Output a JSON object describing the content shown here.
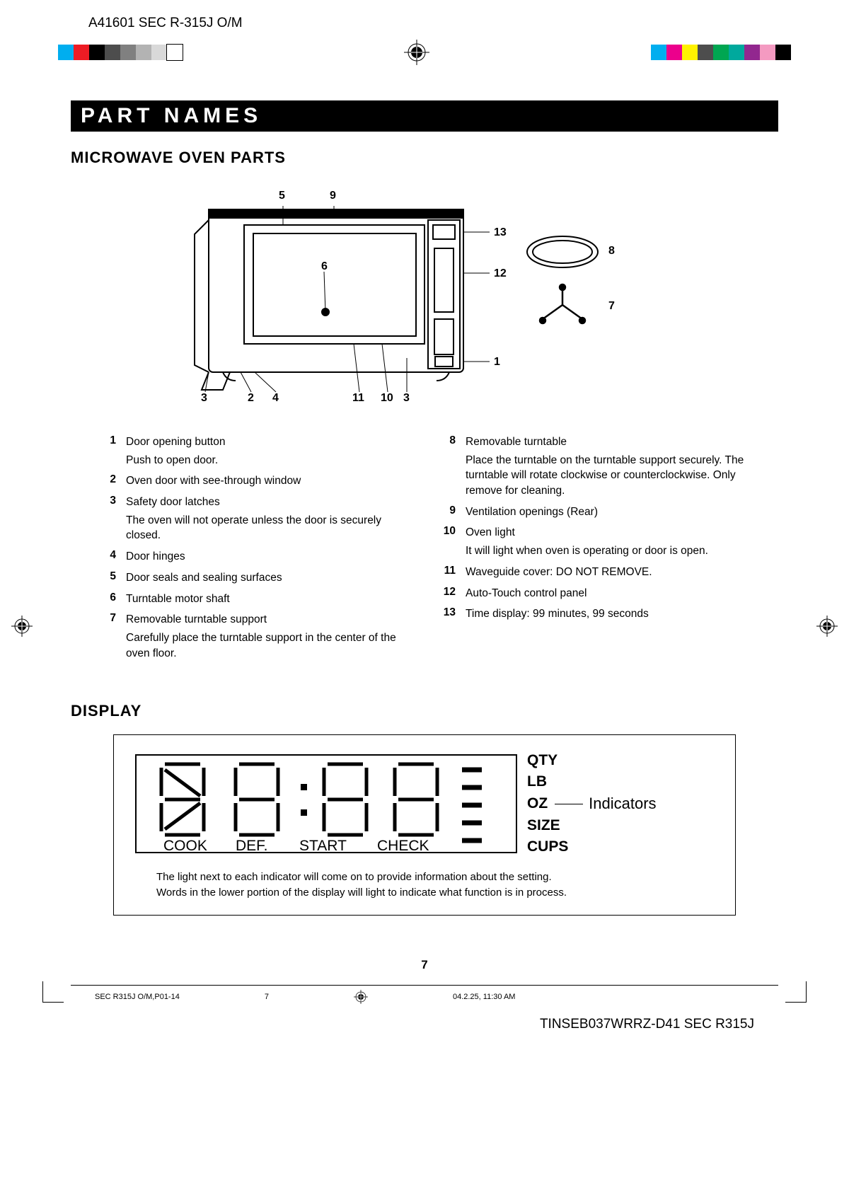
{
  "header": {
    "doc_code": "A41601 SEC R-315J O/M"
  },
  "regbar": {
    "left_swatches": [
      "#00aeef",
      "#ed1c24",
      "#000000",
      "#4d4d4d",
      "#808080",
      "#b3b3b3",
      "#d9d9d9",
      "#ffffff"
    ],
    "right_swatches": [
      "#00aeef",
      "#ec008c",
      "#fff200",
      "#4d4d4d",
      "#00a651",
      "#00a99d",
      "#92278f",
      "#f49ac1",
      "#000000"
    ]
  },
  "band_title": "PART NAMES",
  "section1_title": "MICROWAVE OVEN PARTS",
  "callouts": {
    "top": [
      "5",
      "9"
    ],
    "right": [
      "13",
      "12",
      "1"
    ],
    "far_right": [
      "8",
      "7"
    ],
    "center": [
      "6"
    ],
    "bottom": [
      "3",
      "2",
      "4",
      "11",
      "10",
      "3"
    ]
  },
  "parts_left": [
    {
      "n": "1",
      "label": "Door opening button",
      "desc": "Push to open door."
    },
    {
      "n": "2",
      "label": "Oven door with see-through window",
      "desc": ""
    },
    {
      "n": "3",
      "label": "Safety door latches",
      "desc": "The oven will not operate unless the door is securely closed."
    },
    {
      "n": "4",
      "label": "Door hinges",
      "desc": ""
    },
    {
      "n": "5",
      "label": "Door seals and sealing surfaces",
      "desc": ""
    },
    {
      "n": "6",
      "label": "Turntable motor shaft",
      "desc": ""
    },
    {
      "n": "7",
      "label": "Removable turntable support",
      "desc": "Carefully place the turntable support in the center of the oven floor."
    }
  ],
  "parts_right": [
    {
      "n": "8",
      "label": "Removable turntable",
      "desc": "Place the turntable on the turntable support securely. The turntable will rotate clockwise or counterclockwise. Only remove for cleaning."
    },
    {
      "n": "9",
      "label": "Ventilation openings (Rear)",
      "desc": ""
    },
    {
      "n": "10",
      "label": "Oven light",
      "desc": "It will light when oven is operating or door is open."
    },
    {
      "n": "11",
      "label": "Waveguide cover: DO NOT REMOVE.",
      "desc": ""
    },
    {
      "n": "12",
      "label": "Auto-Touch control panel",
      "desc": ""
    },
    {
      "n": "13",
      "label": "Time display: 99 minutes, 99 seconds",
      "desc": ""
    }
  ],
  "section2_title": "DISPLAY",
  "lcd": {
    "bottom_words": [
      "COOK",
      "DEF.",
      "START",
      "CHECK"
    ],
    "indicators": [
      "QTY",
      "LB",
      "OZ",
      "SIZE",
      "CUPS"
    ],
    "side_label": "Indicators"
  },
  "display_caption1": "The light next to each indicator will come on to provide information about the setting.",
  "display_caption2": "Words in the lower portion of the display will light to indicate what function is in process.",
  "footer": {
    "page": "7",
    "left": "SEC R315J O/M,P01-14",
    "mid": "7",
    "right": "04.2.25, 11:30 AM",
    "bottom_code": "TINSEB037WRRZ-D41 SEC R315J"
  },
  "colors": {
    "black": "#000000",
    "white": "#ffffff"
  }
}
